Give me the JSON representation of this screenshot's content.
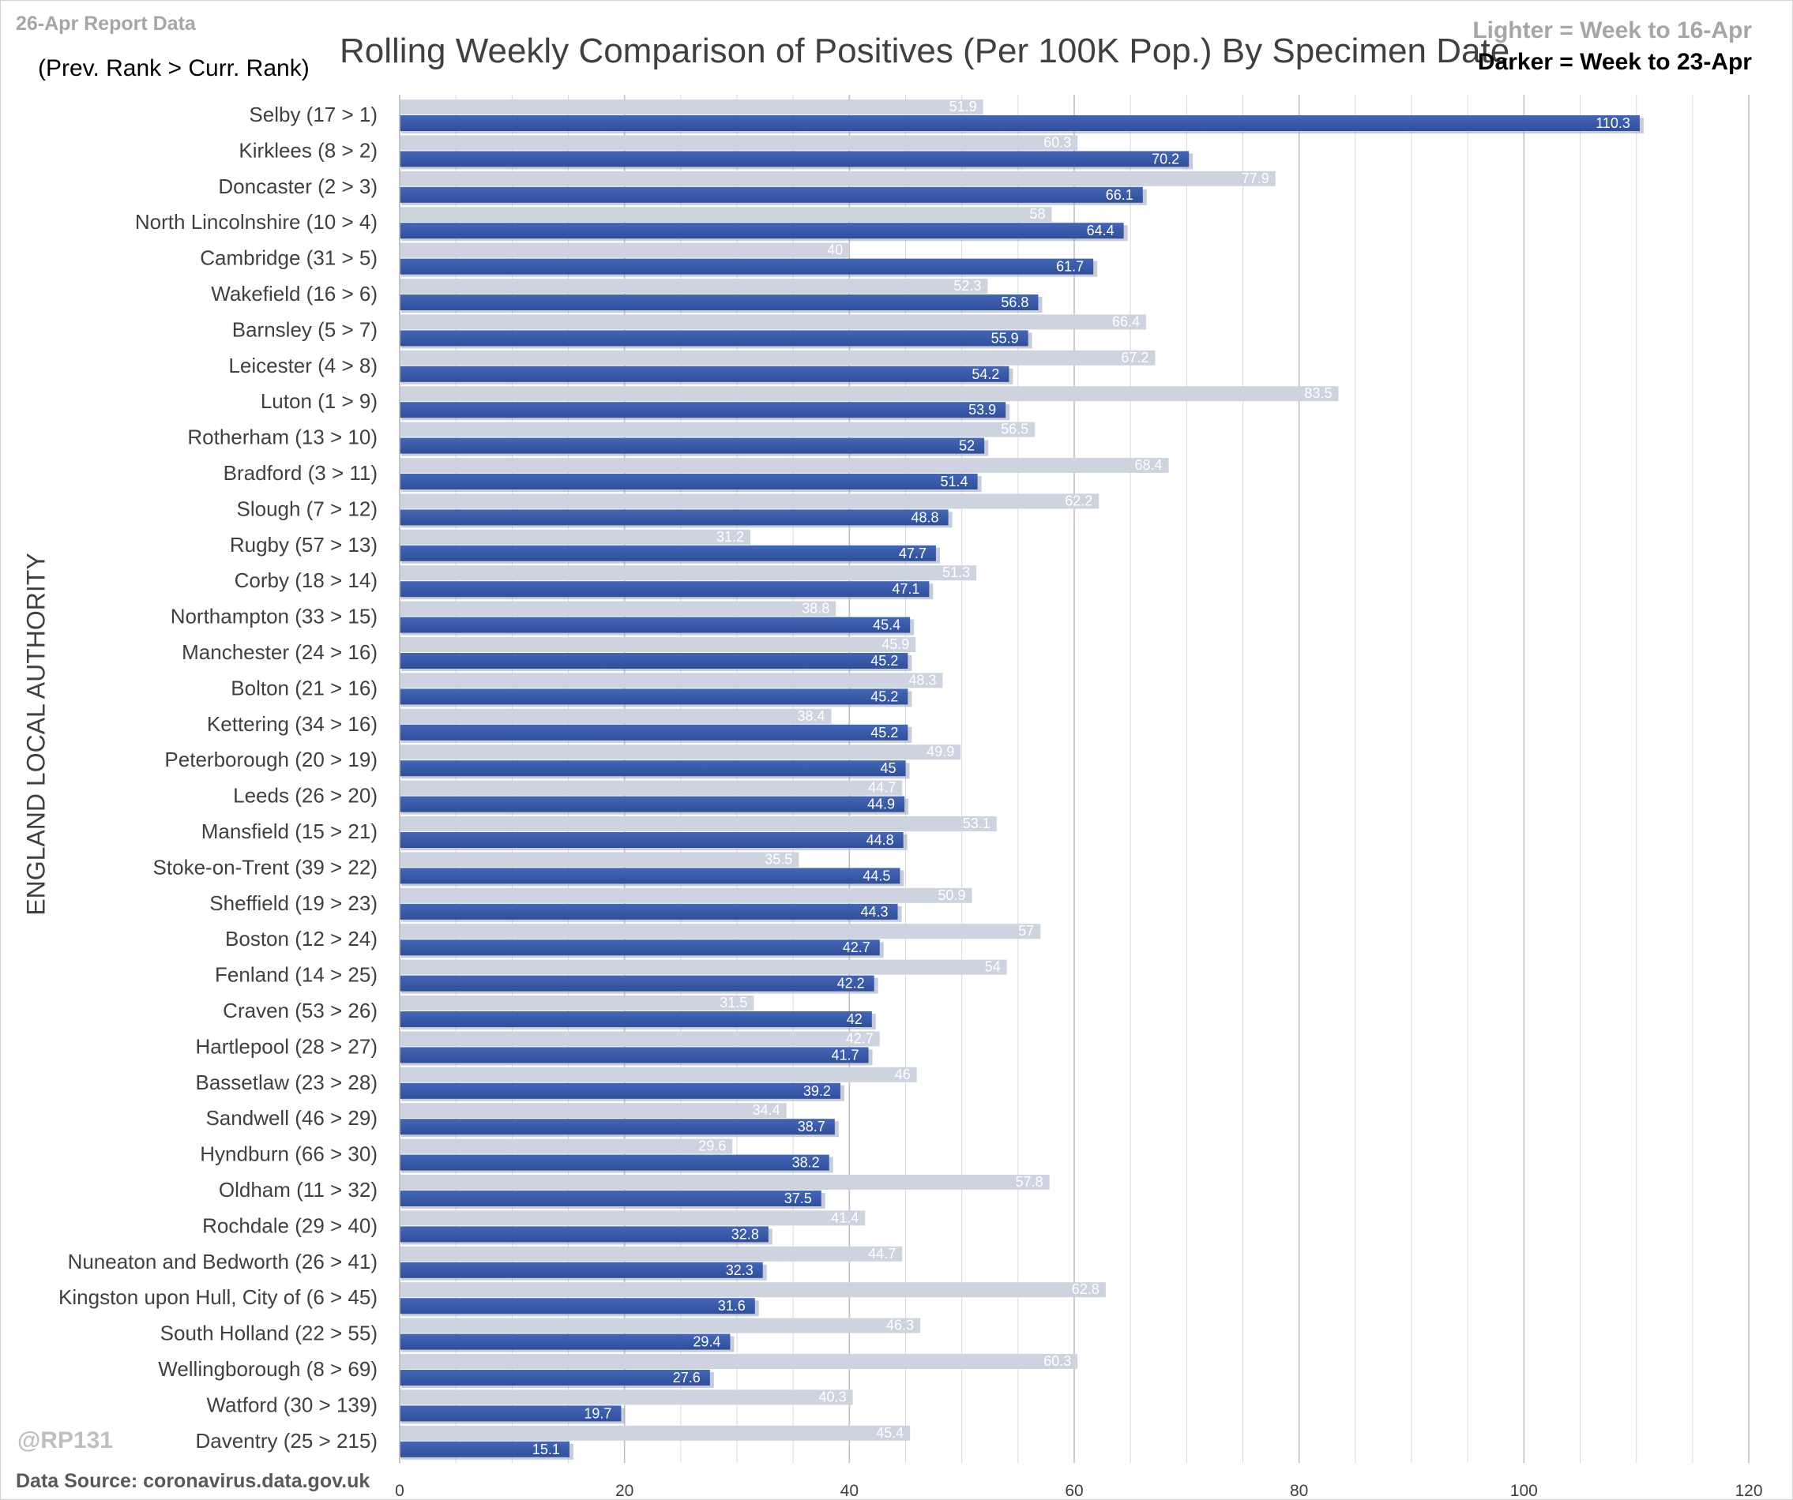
{
  "header": {
    "report_date": "26-Apr Report Data",
    "rank_note": "(Prev. Rank > Curr. Rank)",
    "legend_lighter": "Lighter =  Week to 16-Apr",
    "legend_darker": "Darker =  Week to 23-Apr"
  },
  "footer": {
    "handle": "@RP131",
    "source": "Data Source: coronavirus.data.gov.uk"
  },
  "colors": {
    "lighter": "#cdd3df",
    "darker": "#2f4f99",
    "darker_highlight": "#4466b8",
    "grid": "#d9d9d9",
    "lighter_label": "#ffffff",
    "darker_label": "#ffffff"
  },
  "chart_data": {
    "type": "bar",
    "orientation": "horizontal",
    "title": "Rolling Weekly Comparison of Positives  (Per 100K Pop.) By Specimen Date",
    "xlabel": "",
    "ylabel": "ENGLAND LOCAL AUTHORITY",
    "xlim": [
      0,
      120
    ],
    "xticks": [
      0,
      20,
      40,
      60,
      80,
      100,
      120
    ],
    "grid": true,
    "legend_placement": "top-right",
    "categories": [
      "Selby (17 > 1)",
      "Kirklees (8 > 2)",
      "Doncaster (2 > 3)",
      "North Lincolnshire (10 > 4)",
      "Cambridge (31 > 5)",
      "Wakefield (16 > 6)",
      "Barnsley (5 > 7)",
      "Leicester (4 > 8)",
      "Luton (1 > 9)",
      "Rotherham (13 > 10)",
      "Bradford (3 > 11)",
      "Slough (7 > 12)",
      "Rugby (57 > 13)",
      "Corby (18 > 14)",
      "Northampton (33 > 15)",
      "Manchester (24 > 16)",
      "Bolton (21 > 16)",
      "Kettering (34 > 16)",
      "Peterborough (20 > 19)",
      "Leeds (26 > 20)",
      "Mansfield (15 > 21)",
      "Stoke-on-Trent (39 > 22)",
      "Sheffield (19 > 23)",
      "Boston (12 > 24)",
      "Fenland (14 > 25)",
      "Craven (53 > 26)",
      "Hartlepool (28 > 27)",
      "Bassetlaw (23 > 28)",
      "Sandwell (46 > 29)",
      "Hyndburn (66 > 30)",
      "Oldham (11 > 32)",
      "Rochdale (29 > 40)",
      "Nuneaton and Bedworth (26 > 41)",
      "Kingston upon Hull, City of (6 > 45)",
      "South Holland (22 > 55)",
      "Wellingborough (8 > 69)",
      "Watford (30 > 139)",
      "Daventry (25 > 215)"
    ],
    "series": [
      {
        "name": "Week to 16-Apr",
        "values": [
          51.9,
          60.3,
          77.9,
          58,
          40,
          52.3,
          66.4,
          67.2,
          83.5,
          56.5,
          68.4,
          62.2,
          31.2,
          51.3,
          38.8,
          45.9,
          48.3,
          38.4,
          49.9,
          44.7,
          53.1,
          35.5,
          50.9,
          57,
          54,
          31.5,
          42.7,
          46,
          34.4,
          29.6,
          57.8,
          41.4,
          44.7,
          62.8,
          46.3,
          60.3,
          40.3,
          45.4
        ]
      },
      {
        "name": "Week to 23-Apr",
        "values": [
          110.3,
          70.2,
          66.1,
          64.4,
          61.7,
          56.8,
          55.9,
          54.2,
          53.9,
          52,
          51.4,
          48.8,
          47.7,
          47.1,
          45.4,
          45.2,
          45.2,
          45.2,
          45,
          44.9,
          44.8,
          44.5,
          44.3,
          42.7,
          42.2,
          42,
          41.7,
          39.2,
          38.7,
          38.2,
          37.5,
          32.8,
          32.3,
          31.6,
          29.4,
          27.6,
          19.7,
          15.1
        ]
      }
    ]
  }
}
